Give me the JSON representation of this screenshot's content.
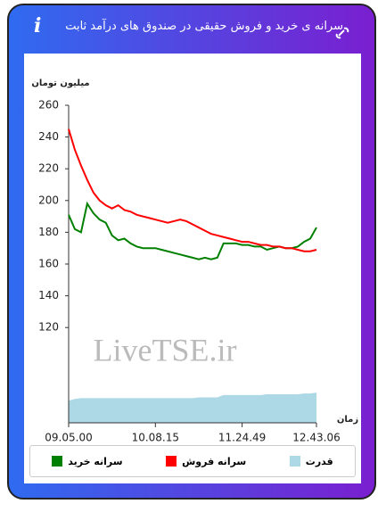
{
  "header": {
    "title": "سرانه ی خرید و فروش حقیقی در صندوق های درآمد ثابت",
    "icon": "i"
  },
  "chart_data": {
    "type": "line",
    "ylabel": "میلیون تومان",
    "xlabel": "زمان",
    "watermark": "LiveTSE.ir",
    "x": [
      0,
      1,
      2,
      3,
      4,
      5,
      6,
      7,
      8,
      9,
      10,
      11,
      12,
      13,
      14,
      15,
      16,
      17,
      18,
      19,
      20,
      21,
      22,
      23,
      24,
      25,
      26,
      27,
      28,
      29,
      30,
      31,
      32,
      33,
      34,
      35,
      36,
      37,
      38,
      39,
      40
    ],
    "xlim": [
      0,
      40
    ],
    "xticks": [
      {
        "value": 0,
        "label": "09.05.00"
      },
      {
        "value": 14,
        "label": "10.08.15"
      },
      {
        "value": 28,
        "label": "11.24.49"
      },
      {
        "value": 40,
        "label": "12.43.06"
      }
    ],
    "ylim": [
      60,
      260
    ],
    "yticks": [
      120,
      140,
      160,
      180,
      200,
      220,
      240,
      260
    ],
    "grid": false,
    "series": [
      {
        "name": "سرانه خرید",
        "color": "#008000",
        "kind": "line",
        "values": [
          191,
          182,
          180,
          198,
          192,
          188,
          186,
          178,
          175,
          176,
          173,
          171,
          170,
          170,
          170,
          169,
          168,
          167,
          166,
          165,
          164,
          163,
          164,
          163,
          164,
          173,
          173,
          173,
          172,
          172,
          171,
          171,
          169,
          170,
          171,
          170,
          170,
          171,
          174,
          176,
          183
        ]
      },
      {
        "name": "سرانه فروش",
        "color": "#ff0000",
        "kind": "line",
        "values": [
          245,
          232,
          222,
          213,
          205,
          200,
          197,
          195,
          197,
          194,
          193,
          191,
          190,
          189,
          188,
          187,
          186,
          187,
          188,
          187,
          185,
          183,
          181,
          179,
          178,
          177,
          176,
          175,
          174,
          174,
          173,
          172,
          172,
          171,
          171,
          170,
          170,
          169,
          168,
          168,
          169
        ]
      },
      {
        "name": "قدرت",
        "color": "#add8e6",
        "kind": "area",
        "values": [
          74,
          75,
          75.5,
          75.5,
          75.5,
          75.5,
          75.5,
          75.5,
          75.5,
          75.5,
          75.5,
          75.5,
          75.5,
          75.5,
          75.5,
          75.5,
          75.5,
          75.5,
          75.5,
          75.5,
          75.5,
          76,
          76,
          76,
          76,
          77.5,
          77.5,
          77.5,
          77.5,
          77.5,
          77.5,
          77.5,
          78,
          78,
          78,
          78,
          78,
          78,
          78.5,
          78.5,
          79
        ]
      }
    ]
  }
}
